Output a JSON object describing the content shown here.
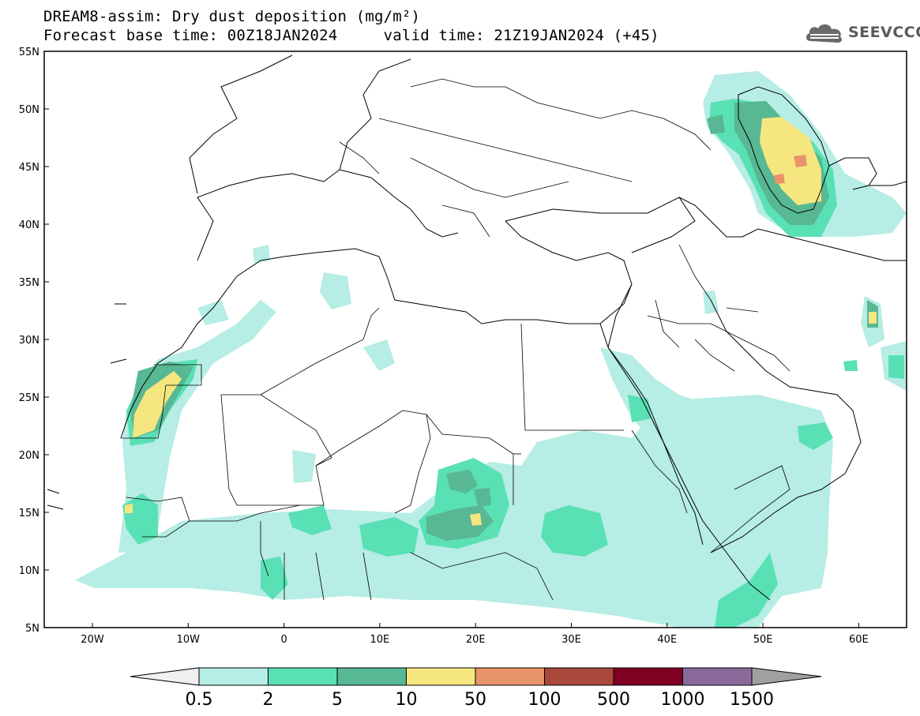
{
  "header": {
    "title_line1": "DREAM8-assim: Dry dust deposition (mg/m²)",
    "title_line2_base": "Forecast base time: 00Z18JAN2024",
    "title_line2_valid": "valid time: 21Z19JAN2024 (+45)"
  },
  "logo": {
    "text": "SEEVCCC",
    "icon": "cloud-icon"
  },
  "map": {
    "lat_labels": [
      "55N",
      "50N",
      "45N",
      "40N",
      "35N",
      "30N",
      "25N",
      "20N",
      "15N",
      "10N",
      "5N"
    ],
    "lon_labels": [
      "20W",
      "10W",
      "0",
      "10E",
      "20E",
      "30E",
      "40E",
      "50E",
      "60E"
    ]
  },
  "colorbar": {
    "levels": [
      "0.5",
      "2",
      "5",
      "10",
      "50",
      "100",
      "500",
      "1000",
      "1500"
    ],
    "colors": [
      "#f0f0f0",
      "#b6ede4",
      "#5ae0b5",
      "#57b893",
      "#f5e680",
      "#e8936a",
      "#a9483b",
      "#800024",
      "#8a6a9a",
      "#a0a0a0"
    ]
  }
}
